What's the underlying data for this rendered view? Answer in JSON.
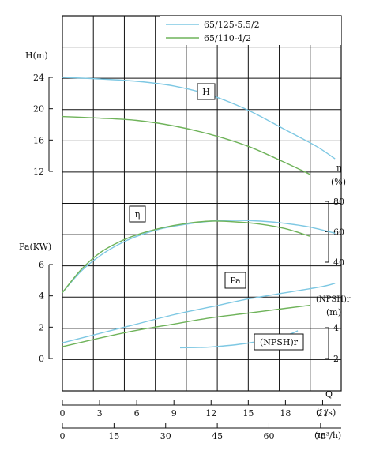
{
  "chart_data": {
    "type": "line",
    "grid": true,
    "legend_placement": "top-right",
    "series_colors": {
      "a": "#7ec8e3",
      "b": "#6fb35a"
    },
    "legend": [
      {
        "name": "65/125-5.5/2",
        "color": "#7ec8e3"
      },
      {
        "name": "65/110-4/2",
        "color": "#6fb35a"
      }
    ],
    "axes": {
      "head": {
        "label": "H(m)",
        "ticks": [
          "12",
          "16",
          "20",
          "24"
        ],
        "range": [
          12,
          24
        ]
      },
      "efficiency": {
        "label_symbol": "η",
        "label_unit": "(%)",
        "ticks": [
          "40",
          "60",
          "80"
        ],
        "range": [
          40,
          80
        ]
      },
      "power": {
        "label": "Pa(KW)",
        "ticks": [
          "0",
          "2",
          "4",
          "6"
        ],
        "range": [
          0,
          6
        ]
      },
      "npsh": {
        "label": "(NPSH)r",
        "unit": "(m)",
        "ticks": [
          "2",
          "4"
        ],
        "range": [
          2,
          4
        ]
      },
      "flow_ls": {
        "label": "Q",
        "unit": "(L/s)",
        "ticks": [
          "0",
          "3",
          "6",
          "9",
          "12",
          "15",
          "18",
          "21"
        ],
        "range": [
          0,
          21
        ]
      },
      "flow_m3h": {
        "unit": "(m³/h)",
        "ticks": [
          "0",
          "15",
          "30",
          "45",
          "60",
          "75"
        ],
        "range": [
          0,
          75
        ]
      }
    },
    "curve_tags": {
      "head": "H",
      "efficiency": "η",
      "power": "Pa",
      "npsh": "(NPSH)r"
    },
    "curves": {
      "head": [
        {
          "series": "65/125-5.5/2",
          "points": [
            [
              0,
              24
            ],
            [
              3,
              23.8
            ],
            [
              6,
              23.5
            ],
            [
              9,
              22.9
            ],
            [
              12,
              21.7
            ],
            [
              15,
              19.8
            ],
            [
              18,
              17.3
            ],
            [
              20.5,
              15.2
            ],
            [
              22,
              13.6
            ]
          ]
        },
        {
          "series": "65/110-4/2",
          "points": [
            [
              0,
              19
            ],
            [
              3,
              18.8
            ],
            [
              6,
              18.5
            ],
            [
              9,
              17.8
            ],
            [
              12,
              16.7
            ],
            [
              15,
              15.2
            ],
            [
              18,
              13.1
            ],
            [
              20,
              11.6
            ]
          ]
        }
      ],
      "efficiency": [
        {
          "series": "65/125-5.5/2",
          "points": [
            [
              0,
              20
            ],
            [
              1.5,
              34
            ],
            [
              3,
              44
            ],
            [
              4.5,
              51.5
            ],
            [
              6,
              57
            ],
            [
              8,
              62
            ],
            [
              10,
              65
            ],
            [
              12,
              67
            ],
            [
              14,
              67.5
            ],
            [
              16,
              67
            ],
            [
              18,
              65.5
            ],
            [
              20,
              63
            ],
            [
              22,
              59
            ]
          ]
        },
        {
          "series": "65/110-4/2",
          "points": [
            [
              0,
              20
            ],
            [
              1.5,
              35
            ],
            [
              3,
              46
            ],
            [
              4.5,
              53
            ],
            [
              6,
              58
            ],
            [
              8,
              62.5
            ],
            [
              10,
              65.5
            ],
            [
              12,
              67
            ],
            [
              14,
              66.5
            ],
            [
              16,
              65
            ],
            [
              18,
              62
            ],
            [
              20,
              57
            ]
          ]
        }
      ],
      "power": [
        {
          "series": "65/125-5.5/2",
          "points": [
            [
              0,
              1.0
            ],
            [
              3,
              1.6
            ],
            [
              6,
              2.2
            ],
            [
              9,
              2.8
            ],
            [
              12,
              3.3
            ],
            [
              15,
              3.8
            ],
            [
              18,
              4.2
            ],
            [
              21,
              4.6
            ],
            [
              22,
              4.8
            ]
          ]
        },
        {
          "series": "65/110-4/2",
          "points": [
            [
              0,
              0.75
            ],
            [
              3,
              1.3
            ],
            [
              6,
              1.8
            ],
            [
              9,
              2.2
            ],
            [
              12,
              2.6
            ],
            [
              15,
              2.9
            ],
            [
              18,
              3.2
            ],
            [
              20,
              3.4
            ]
          ]
        }
      ],
      "npsh": [
        {
          "series": "65/125-5.5/2",
          "points": [
            [
              9.5,
              2.7
            ],
            [
              12,
              2.75
            ],
            [
              15,
              3.0
            ],
            [
              18,
              3.5
            ],
            [
              19,
              3.8
            ]
          ]
        }
      ]
    }
  }
}
